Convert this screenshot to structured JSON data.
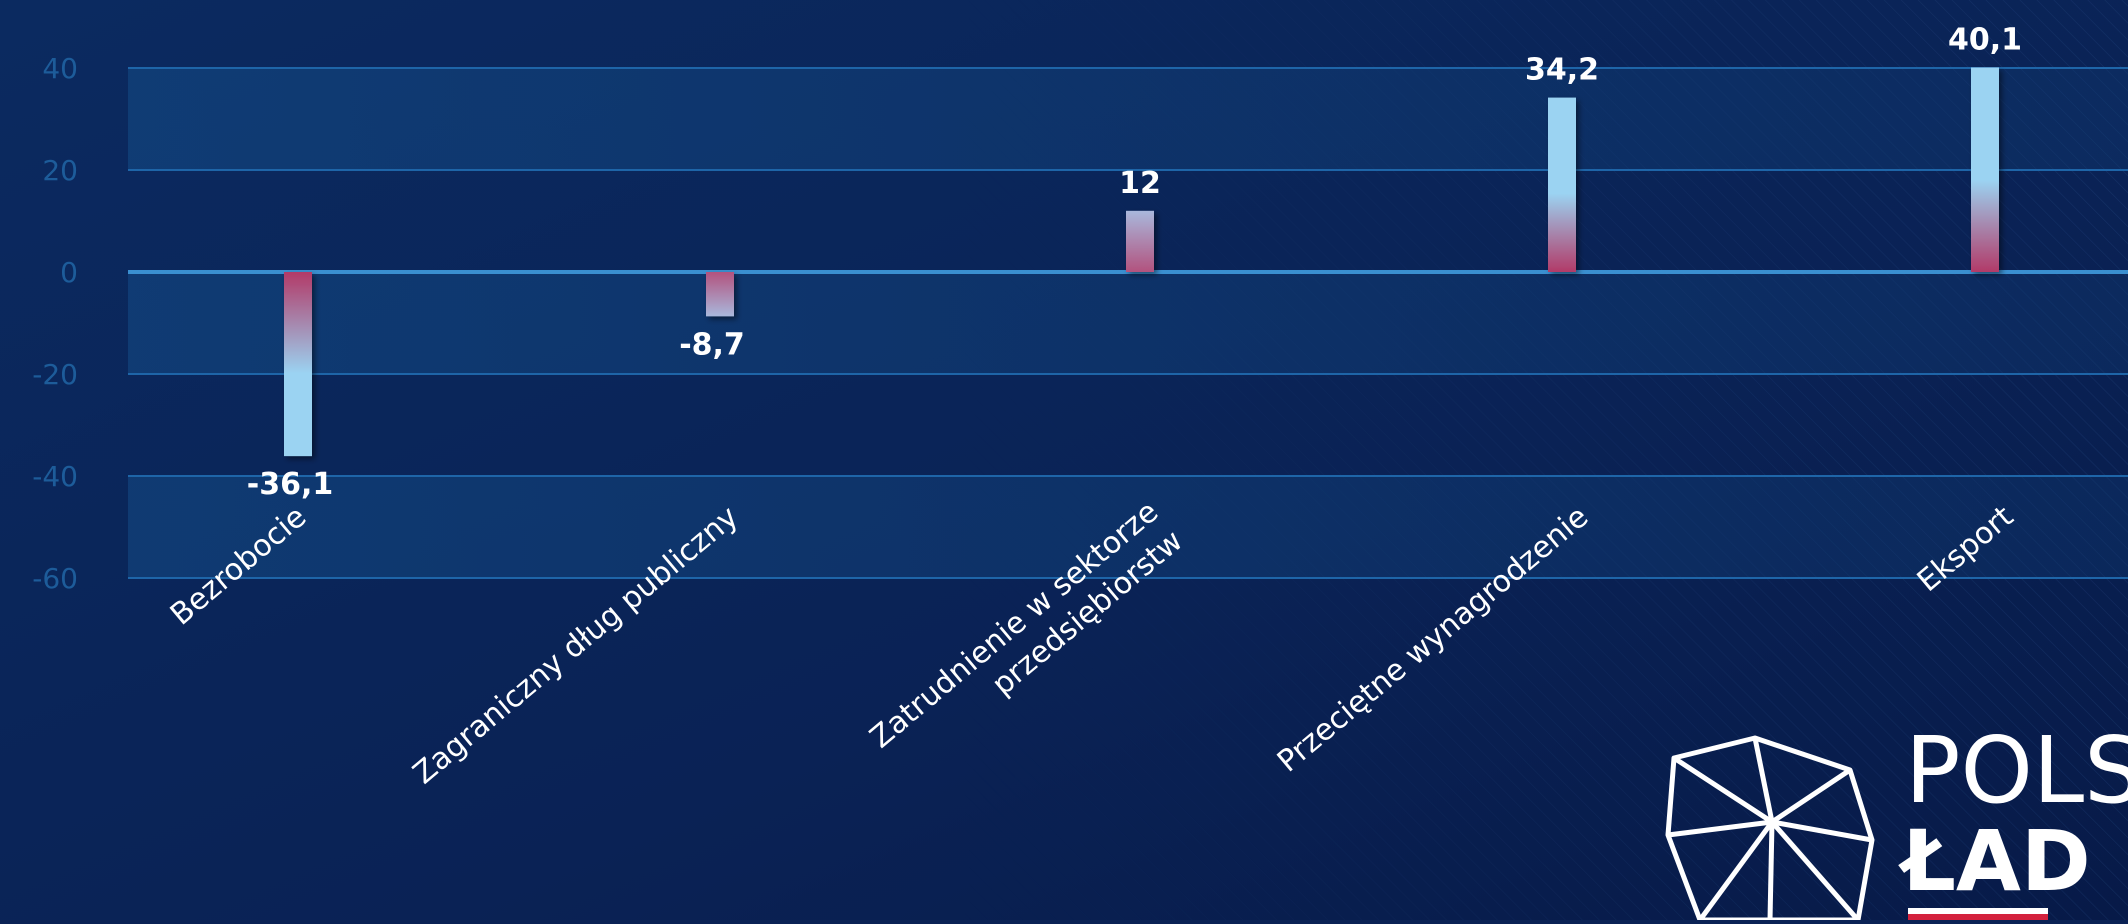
{
  "chart_data": {
    "type": "bar",
    "categories": [
      [
        "Bezrobocie"
      ],
      [
        "Zagraniczny dług publiczny"
      ],
      [
        "Zatrudnienie w sektorze",
        "przedsiębiorstw"
      ],
      [
        "Przeciętne wynagrodzenie"
      ],
      [
        "Eksport"
      ]
    ],
    "values": [
      -36.1,
      -8.7,
      12,
      34.2,
      40.1
    ],
    "value_labels": [
      "-36,1",
      "-8,7",
      "12",
      "34,2",
      "40,1"
    ],
    "yticks": [
      40,
      20,
      0,
      -20,
      -40,
      -60
    ],
    "ylim": [
      -60,
      40
    ],
    "grid": true,
    "title": "",
    "xlabel": "",
    "ylabel": ""
  },
  "logo": {
    "line1": "POLSKI",
    "line2": "ŁAD"
  },
  "colors": {
    "background": "#0a2255",
    "axis_text": "#1d5c9a",
    "bar_light": "#9bd3f2",
    "bar_dark": "#b23a68",
    "grid": "#1e65a8"
  }
}
